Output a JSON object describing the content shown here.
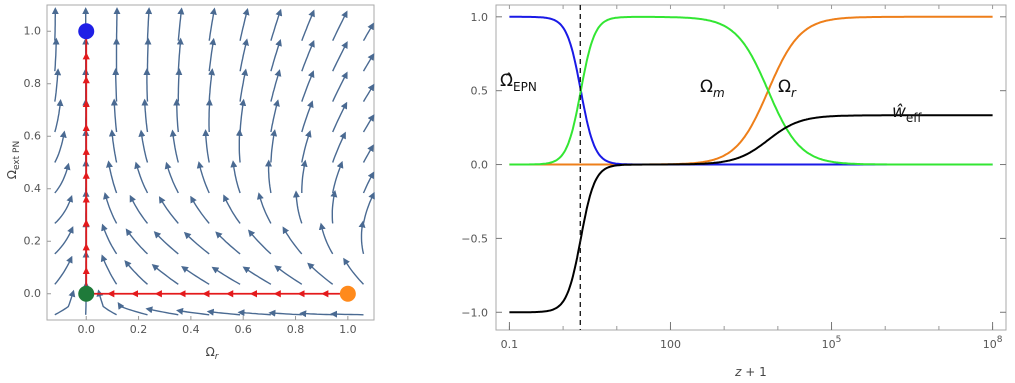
{
  "chart_data": [
    {
      "type": "stream",
      "xlabel": "Ω_r",
      "ylabel": "Ω_ext PN",
      "xlim": [
        -0.15,
        1.1
      ],
      "ylim": [
        -0.1,
        1.1
      ],
      "xticks": [
        "0.0",
        "0.2",
        "0.4",
        "0.6",
        "0.8",
        "1.0"
      ],
      "yticks": [
        "0.0",
        "0.2",
        "0.4",
        "0.6",
        "0.8",
        "1.0"
      ],
      "colors": {
        "stream": "#4a6a92",
        "trajectory": "#e41a1c",
        "frame": "#aaaaaa"
      },
      "fixed_points": [
        {
          "x": 0.0,
          "y": 1.0,
          "color": "#1f1fe6"
        },
        {
          "x": 0.0,
          "y": 0.0,
          "color": "#1f7a3a"
        },
        {
          "x": 1.0,
          "y": 0.0,
          "color": "#ff8a1c"
        }
      ],
      "trajectories": [
        {
          "from": [
            1.0,
            0.0
          ],
          "to": [
            0.0,
            0.0
          ]
        },
        {
          "from": [
            0.0,
            0.0
          ],
          "to": [
            0.0,
            1.0
          ]
        }
      ]
    },
    {
      "type": "line",
      "xlabel": "z + 1",
      "xscale": "log",
      "xlim_log10": [
        -1.25,
        8.25
      ],
      "ylim": [
        -1.12,
        1.08
      ],
      "xticks": [
        {
          "log10": -1,
          "label": "0.1"
        },
        {
          "log10": 2,
          "label": "100"
        },
        {
          "log10": 5,
          "label": "10",
          "sup": "5"
        },
        {
          "log10": 8,
          "label": "10",
          "sup": "8"
        }
      ],
      "yticks": [
        "-1.0",
        "-0.5",
        "0.0",
        "0.5",
        "1.0"
      ],
      "vline_log10": 0.32,
      "series": [
        {
          "color": "#1a1ae6",
          "label_main": "Ω̂",
          "label_sub": "EPN",
          "center_log10": 0.33,
          "width": 0.13,
          "low": 0,
          "high": 1,
          "direction": "fall"
        },
        {
          "color": "#33e633",
          "label_main": "Ω",
          "label_sub": "m",
          "center_log10": 0.33,
          "width": 0.13,
          "low": 0,
          "high": 1,
          "direction": "rise",
          "fall_center_log10": 3.82,
          "fall_width": 0.3
        },
        {
          "color": "#ee7f1a",
          "label_main": "Ω",
          "label_sub": "r",
          "center_log10": 3.82,
          "width": 0.3,
          "low": 0,
          "high": 1,
          "direction": "rise"
        },
        {
          "color": "#000000",
          "label_main": "ŵ",
          "label_sub": "eff",
          "center_log10": 0.33,
          "width": 0.13,
          "low": -1,
          "high": 0,
          "direction": "rise",
          "second_center_log10": 3.82,
          "second_width": 0.3,
          "second_high": 0.3333
        }
      ]
    }
  ]
}
